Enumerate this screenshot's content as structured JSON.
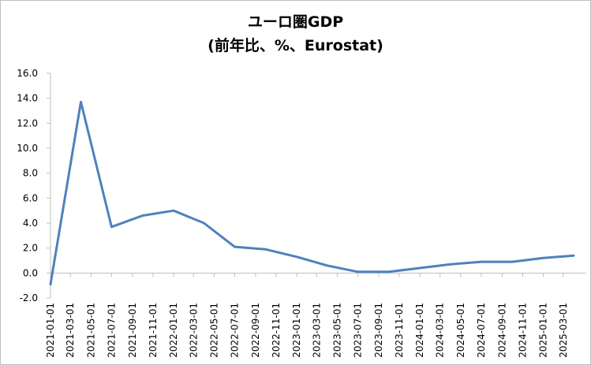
{
  "chart_data": {
    "type": "line",
    "title": "ユーロ圏GDP",
    "subtitle": "(前年比、%、Eurostat)",
    "xlabel": "",
    "ylabel": "",
    "ylim": [
      -2.0,
      16.0
    ],
    "yticks": [
      "-2.0",
      "0.0",
      "2.0",
      "4.0",
      "6.0",
      "8.0",
      "10.0",
      "12.0",
      "14.0",
      "16.0"
    ],
    "categories": [
      "2021-01-01",
      "2021-03-01",
      "2021-05-01",
      "2021-07-01",
      "2021-09-01",
      "2021-11-01",
      "2022-01-01",
      "2022-03-01",
      "2022-05-01",
      "2022-07-01",
      "2022-09-01",
      "2022-11-01",
      "2023-01-01",
      "2023-03-01",
      "2023-05-01",
      "2023-07-01",
      "2023-09-01",
      "2023-11-01",
      "2024-01-01",
      "2024-03-01",
      "2024-05-01",
      "2024-07-01",
      "2024-09-01",
      "2024-11-01",
      "2025-01-01",
      "2025-03-01"
    ],
    "x": [
      "2021-01-01",
      "2021-04-01",
      "2021-07-01",
      "2021-10-01",
      "2022-01-01",
      "2022-04-01",
      "2022-07-01",
      "2022-10-01",
      "2023-01-01",
      "2023-04-01",
      "2023-07-01",
      "2023-10-01",
      "2024-01-01",
      "2024-04-01",
      "2024-07-01",
      "2024-10-01",
      "2025-01-01",
      "2025-04-01"
    ],
    "series": [
      {
        "values": [
          -0.9,
          13.7,
          3.7,
          4.6,
          5.0,
          4.0,
          2.1,
          1.9,
          1.3,
          0.6,
          0.1,
          0.1,
          0.4,
          0.7,
          0.9,
          0.9,
          1.2,
          1.4
        ],
        "color": "#4f81bd"
      }
    ],
    "grid": false,
    "legend": "none"
  }
}
